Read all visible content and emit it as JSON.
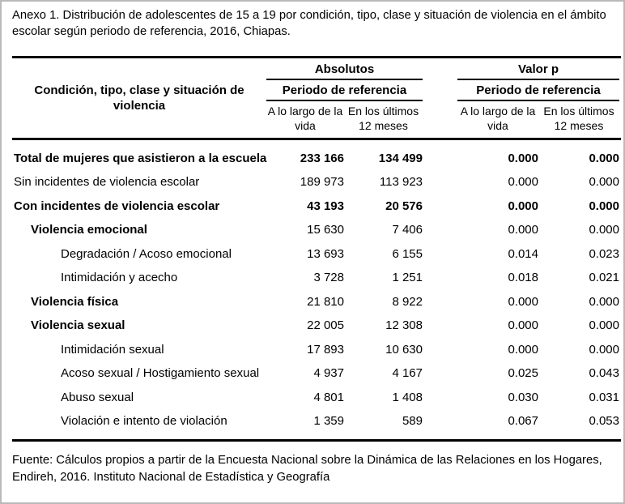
{
  "caption": "Anexo 1. Distribución de adolescentes de 15 a 19 por condición, tipo, clase y situación de violencia en el ámbito escolar según periodo de referencia, 2016, Chiapas.",
  "colors": {
    "text": "#000000",
    "rule": "#000000",
    "frame": "#b9b9b9",
    "background": "#ffffff"
  },
  "table": {
    "row_header": "Condición, tipo, clase y situación de violencia",
    "groups": [
      {
        "label": "Absolutos",
        "subheader": "Periodo de referencia",
        "columns": [
          "A lo largo de la vida",
          "En los últimos 12 meses"
        ]
      },
      {
        "label": "Valor p",
        "subheader": "Periodo de referencia",
        "columns": [
          "A lo largo de la vida",
          "En los últimos 12 meses"
        ]
      }
    ],
    "rows": [
      {
        "label": "Total de mujeres que asistieron a la escuela",
        "indent": 0,
        "bold_label": true,
        "bold_values": true,
        "values": [
          "233 166",
          "134 499",
          "0.000",
          "0.000"
        ]
      },
      {
        "label": "Sin incidentes de violencia escolar",
        "indent": 0,
        "bold_label": false,
        "bold_values": false,
        "values": [
          "189 973",
          "113 923",
          "0.000",
          "0.000"
        ]
      },
      {
        "label": "Con incidentes de violencia escolar",
        "indent": 0,
        "bold_label": true,
        "bold_values": true,
        "values": [
          "43 193",
          "20 576",
          "0.000",
          "0.000"
        ]
      },
      {
        "label": "Violencia emocional",
        "indent": 1,
        "bold_label": true,
        "bold_values": false,
        "values": [
          "15 630",
          "7 406",
          "0.000",
          "0.000"
        ]
      },
      {
        "label": "Degradación / Acoso emocional",
        "indent": 2,
        "bold_label": false,
        "bold_values": false,
        "values": [
          "13 693",
          "6 155",
          "0.014",
          "0.023"
        ]
      },
      {
        "label": "Intimidación y acecho",
        "indent": 2,
        "bold_label": false,
        "bold_values": false,
        "values": [
          "3 728",
          "1 251",
          "0.018",
          "0.021"
        ]
      },
      {
        "label": "Violencia física",
        "indent": 1,
        "bold_label": true,
        "bold_values": false,
        "values": [
          "21 810",
          "8 922",
          "0.000",
          "0.000"
        ]
      },
      {
        "label": "Violencia sexual",
        "indent": 1,
        "bold_label": true,
        "bold_values": false,
        "values": [
          "22 005",
          "12 308",
          "0.000",
          "0.000"
        ]
      },
      {
        "label": "Intimidación sexual",
        "indent": 2,
        "bold_label": false,
        "bold_values": false,
        "values": [
          "17 893",
          "10 630",
          "0.000",
          "0.000"
        ]
      },
      {
        "label": "Acoso sexual / Hostigamiento sexual",
        "indent": 2,
        "bold_label": false,
        "bold_values": false,
        "values": [
          "4 937",
          "4 167",
          "0.025",
          "0.043"
        ]
      },
      {
        "label": "Abuso sexual",
        "indent": 2,
        "bold_label": false,
        "bold_values": false,
        "values": [
          "4 801",
          "1 408",
          "0.030",
          "0.031"
        ]
      },
      {
        "label": "Violación e intento de violación",
        "indent": 2,
        "bold_label": false,
        "bold_values": false,
        "values": [
          "1 359",
          "589",
          "0.067",
          "0.053"
        ]
      }
    ]
  },
  "footer": {
    "source": "Fuente: Cálculos propios a partir de la Encuesta Nacional sobre la Dinámica de las Relaciones en los Hogares, Endireh, 2016. Instituto Nacional de Estadística y Geografía"
  }
}
